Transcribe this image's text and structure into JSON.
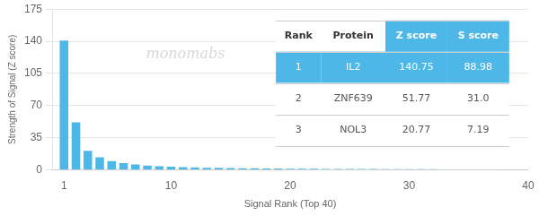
{
  "chart_data": {
    "type": "bar",
    "xlabel": "Signal Rank (Top 40)",
    "ylabel": "Strength of Signal (Z score)",
    "x": [
      1,
      2,
      3,
      4,
      5,
      6,
      7,
      8,
      9,
      10,
      11,
      12,
      13,
      14,
      15,
      16,
      17,
      18,
      19,
      20,
      21,
      22,
      23,
      24,
      25,
      26,
      27,
      28,
      29,
      30,
      31,
      32,
      33,
      34,
      35,
      36,
      37,
      38,
      39,
      40
    ],
    "values": [
      140.75,
      51.77,
      20.77,
      13.5,
      9.5,
      7.2,
      5.8,
      4.5,
      3.8,
      3.2,
      2.8,
      2.5,
      2.2,
      2.0,
      1.8,
      1.6,
      1.5,
      1.4,
      1.3,
      1.2,
      1.1,
      1.05,
      1.0,
      0.95,
      0.9,
      0.85,
      0.8,
      0.75,
      0.7,
      0.65,
      0.6,
      0.55,
      0.5,
      0.45,
      0.4,
      0.35,
      0.3,
      0.25,
      0.2,
      0.15
    ],
    "color": "#4db8e8",
    "xlim": [
      0,
      40
    ],
    "xticks": [
      1,
      10,
      20,
      30,
      40
    ],
    "ylim": [
      0,
      175
    ],
    "yticks": [
      0,
      35,
      70,
      105,
      140,
      175
    ],
    "grid": true,
    "annotations": [
      {
        "text": "monomabs"
      }
    ],
    "table": {
      "header": [
        "Rank",
        "Protein",
        "Z score",
        "S score"
      ],
      "rows": [
        [
          "1",
          "IL2",
          "140.75",
          "88.98"
        ],
        [
          "2",
          "ZNF639",
          "51.77",
          "31.0"
        ],
        [
          "3",
          "NOL3",
          "20.77",
          "7.19"
        ]
      ]
    }
  }
}
